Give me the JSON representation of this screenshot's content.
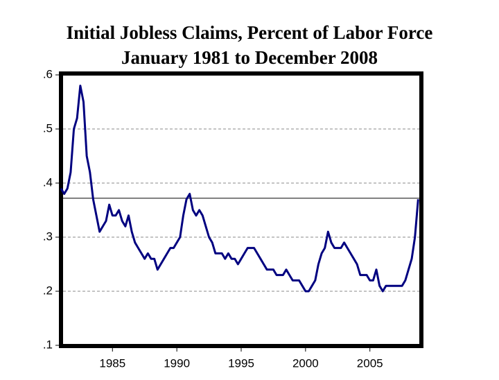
{
  "chart_data": {
    "type": "line",
    "title": "Initial Jobless Claims, Percent of Labor Force",
    "subtitle": "January 1981 to December 2008",
    "x": [
      1981,
      1981.25,
      1981.5,
      1981.75,
      1982,
      1982.25,
      1982.5,
      1982.75,
      1983,
      1983.25,
      1983.5,
      1983.75,
      1984,
      1984.25,
      1984.5,
      1984.75,
      1985,
      1985.25,
      1985.5,
      1985.75,
      1986,
      1986.25,
      1986.5,
      1986.75,
      1987,
      1987.25,
      1987.5,
      1987.75,
      1988,
      1988.25,
      1988.5,
      1988.75,
      1989,
      1989.25,
      1989.5,
      1989.75,
      1990,
      1990.25,
      1990.5,
      1990.75,
      1991,
      1991.25,
      1991.5,
      1991.75,
      1992,
      1992.25,
      1992.5,
      1992.75,
      1993,
      1993.25,
      1993.5,
      1993.75,
      1994,
      1994.25,
      1994.5,
      1994.75,
      1995,
      1995.25,
      1995.5,
      1995.75,
      1996,
      1996.25,
      1996.5,
      1996.75,
      1997,
      1997.25,
      1997.5,
      1997.75,
      1998,
      1998.25,
      1998.5,
      1998.75,
      1999,
      1999.25,
      1999.5,
      1999.75,
      2000,
      2000.25,
      2000.5,
      2000.75,
      2001,
      2001.25,
      2001.5,
      2001.75,
      2002,
      2002.25,
      2002.5,
      2002.75,
      2003,
      2003.25,
      2003.5,
      2003.75,
      2004,
      2004.25,
      2004.5,
      2004.75,
      2005,
      2005.25,
      2005.5,
      2005.75,
      2006,
      2006.25,
      2006.5,
      2006.75,
      2007,
      2007.25,
      2007.5,
      2007.75,
      2008,
      2008.25,
      2008.5,
      2008.75
    ],
    "series": [
      {
        "name": "Initial Jobless Claims",
        "color": "#000080",
        "values": [
          0.39,
          0.38,
          0.39,
          0.42,
          0.5,
          0.52,
          0.58,
          0.55,
          0.45,
          0.42,
          0.37,
          0.34,
          0.31,
          0.32,
          0.33,
          0.36,
          0.34,
          0.34,
          0.35,
          0.33,
          0.32,
          0.34,
          0.31,
          0.29,
          0.28,
          0.27,
          0.26,
          0.27,
          0.26,
          0.26,
          0.24,
          0.25,
          0.26,
          0.27,
          0.28,
          0.28,
          0.29,
          0.3,
          0.34,
          0.37,
          0.38,
          0.35,
          0.34,
          0.35,
          0.34,
          0.32,
          0.3,
          0.29,
          0.27,
          0.27,
          0.27,
          0.26,
          0.27,
          0.26,
          0.26,
          0.25,
          0.26,
          0.27,
          0.28,
          0.28,
          0.28,
          0.27,
          0.26,
          0.25,
          0.24,
          0.24,
          0.24,
          0.23,
          0.23,
          0.23,
          0.24,
          0.23,
          0.22,
          0.22,
          0.22,
          0.21,
          0.2,
          0.2,
          0.21,
          0.22,
          0.25,
          0.27,
          0.28,
          0.31,
          0.29,
          0.28,
          0.28,
          0.28,
          0.29,
          0.28,
          0.27,
          0.26,
          0.25,
          0.23,
          0.23,
          0.23,
          0.22,
          0.22,
          0.24,
          0.21,
          0.2,
          0.21,
          0.21,
          0.21,
          0.21,
          0.21,
          0.21,
          0.22,
          0.24,
          0.26,
          0.3,
          0.37
        ]
      }
    ],
    "xlim": [
      1981,
      2009
    ],
    "xticks": [
      1985,
      1990,
      1995,
      2000,
      2005
    ],
    "ylim": [
      0.1,
      0.6
    ],
    "yticks": [
      {
        "value": 0.1,
        "label": ".1"
      },
      {
        "value": 0.2,
        "label": ".2"
      },
      {
        "value": 0.3,
        "label": ".3"
      },
      {
        "value": 0.4,
        "label": ".4"
      },
      {
        "value": 0.5,
        "label": ".5"
      },
      {
        "value": 0.6,
        "label": ".6"
      }
    ],
    "grid": true,
    "reference_line": 0.372
  }
}
